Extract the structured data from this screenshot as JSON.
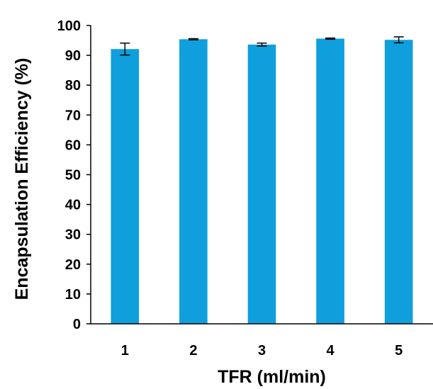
{
  "chart_data": {
    "type": "bar",
    "title": "",
    "xlabel": "TFR (ml/min)",
    "ylabel": "Encapsulation Efficiency (%)",
    "categories": [
      "1",
      "2",
      "3",
      "4",
      "5"
    ],
    "values": [
      92.1,
      95.4,
      93.6,
      95.6,
      95.2
    ],
    "error": [
      2.0,
      0.2,
      0.5,
      0.2,
      1.0
    ],
    "ylim": [
      0,
      100
    ],
    "yticks": [
      0,
      10,
      20,
      30,
      40,
      50,
      60,
      70,
      80,
      90,
      100
    ],
    "grid": false,
    "legend": "none",
    "bar_color": "#0f9fdc"
  }
}
